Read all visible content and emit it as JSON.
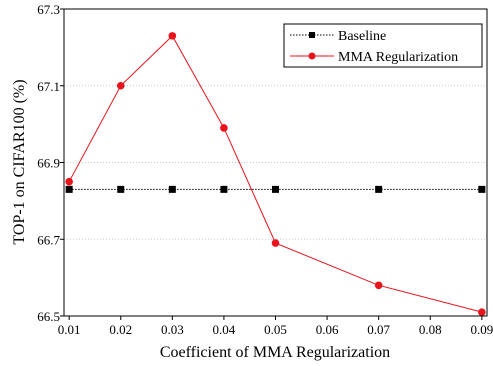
{
  "chart_data": {
    "type": "line",
    "xlabel": "Coefficient of MMA Regularization",
    "ylabel": "TOP-1 on CIFAR100 (%)",
    "xlim": [
      0.009,
      0.091
    ],
    "ylim": [
      66.5,
      67.3
    ],
    "x_ticks": [
      "0.01",
      "0.02",
      "0.03",
      "0.04",
      "0.05",
      "0.06",
      "0.07",
      "0.08",
      "0.09"
    ],
    "y_ticks": [
      "66.5",
      "66.7",
      "66.9",
      "67.1",
      "67.3"
    ],
    "grid": "horizontal-dotted",
    "legend_position": "top-right",
    "series": [
      {
        "name": "Baseline",
        "color": "#000000",
        "marker": "square",
        "line_style": "dotted",
        "x": [
          0.01,
          0.02,
          0.03,
          0.04,
          0.05,
          0.07,
          0.09
        ],
        "values": [
          66.83,
          66.83,
          66.83,
          66.83,
          66.83,
          66.83,
          66.83
        ]
      },
      {
        "name": "MMA Regularization",
        "color": "#e8141b",
        "marker": "circle",
        "line_style": "solid",
        "x": [
          0.01,
          0.02,
          0.03,
          0.04,
          0.05,
          0.07,
          0.09
        ],
        "values": [
          66.85,
          67.1,
          67.23,
          66.99,
          66.69,
          66.58,
          66.51
        ]
      }
    ]
  }
}
